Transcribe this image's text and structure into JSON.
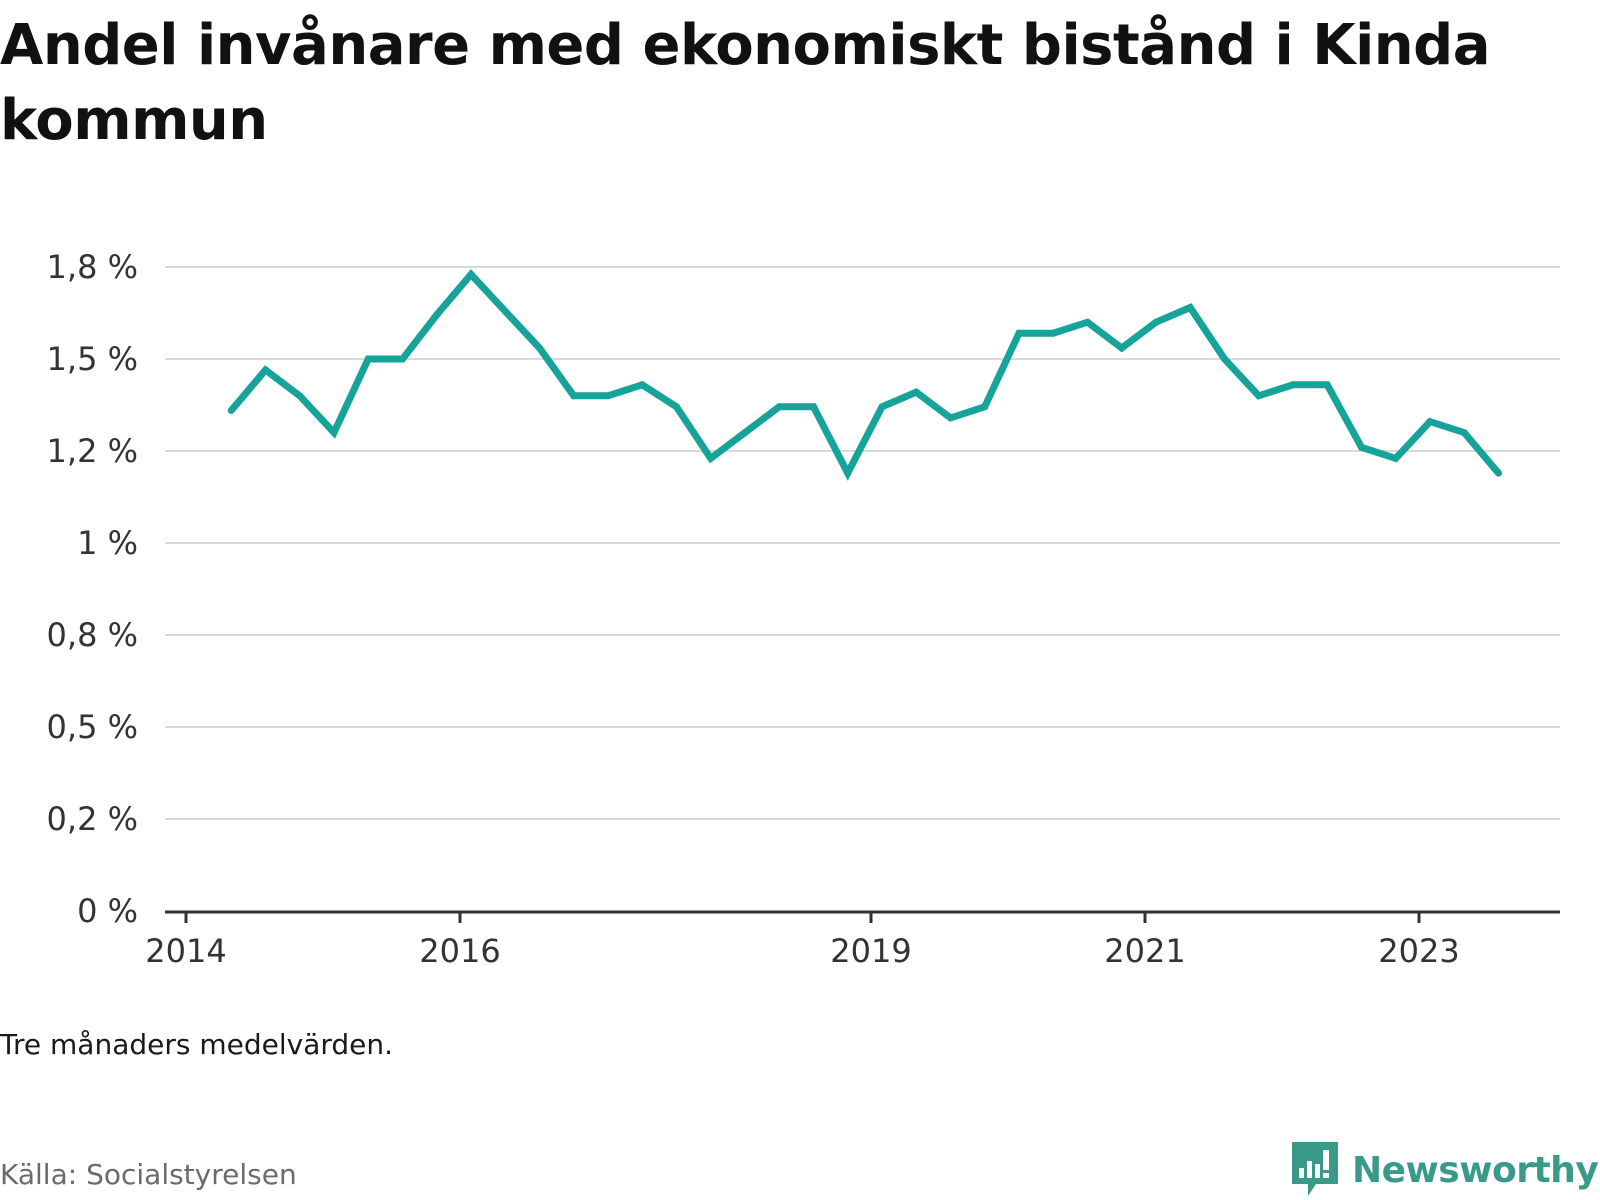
{
  "title": "Andel invånare med ekonomiskt bistånd i Kinda kommun",
  "note": "Tre månaders medelvärden.",
  "source": "Källa: Socialstyrelsen",
  "logo": {
    "text": "Newsworthy",
    "icon": "newsworthy-logo-icon",
    "color": "#3a9a8a"
  },
  "colors": {
    "line": "#16a399",
    "grid": "#d9d9d9",
    "axis": "#333333"
  },
  "chart_data": {
    "type": "line",
    "title": "Andel invånare med ekonomiskt bistånd i Kinda kommun",
    "xlabel": "",
    "ylabel": "",
    "ylim": [
      0,
      1.75
    ],
    "xlim": [
      2014,
      2024.25
    ],
    "grid": true,
    "legend": "none",
    "y_ticks": [
      {
        "value": 0,
        "label": "0 %"
      },
      {
        "value": 0.25,
        "label": "0,2 %"
      },
      {
        "value": 0.5,
        "label": "0,5 %"
      },
      {
        "value": 0.75,
        "label": "0,8 %"
      },
      {
        "value": 1.0,
        "label": "1 %"
      },
      {
        "value": 1.25,
        "label": "1,2 %"
      },
      {
        "value": 1.5,
        "label": "1,5 %"
      },
      {
        "value": 1.75,
        "label": "1,8 %"
      }
    ],
    "x_ticks": [
      {
        "value": 2014,
        "label": "2014"
      },
      {
        "value": 2016,
        "label": "2016"
      },
      {
        "value": 2019,
        "label": "2019"
      },
      {
        "value": 2021,
        "label": "2021"
      },
      {
        "value": 2023,
        "label": "2023"
      }
    ],
    "series": [
      {
        "x": [
          2014.33,
          2014.58,
          2014.83,
          2015.08,
          2015.33,
          2015.58,
          2015.83,
          2016.08,
          2016.33,
          2016.58,
          2016.83,
          2017.08,
          2017.33,
          2017.58,
          2017.83,
          2018.08,
          2018.33,
          2018.58,
          2018.83,
          2019.08,
          2019.33,
          2019.58,
          2019.83,
          2020.08,
          2020.33,
          2020.58,
          2020.83,
          2021.08,
          2021.33,
          2021.58,
          2021.83,
          2022.08,
          2022.33,
          2022.58,
          2022.83,
          2023.08,
          2023.33,
          2023.58
        ],
        "values": [
          1.36,
          1.47,
          1.4,
          1.3,
          1.5,
          1.5,
          1.62,
          1.73,
          1.63,
          1.53,
          1.4,
          1.4,
          1.43,
          1.37,
          1.23,
          1.3,
          1.37,
          1.37,
          1.19,
          1.37,
          1.41,
          1.34,
          1.37,
          1.57,
          1.57,
          1.6,
          1.53,
          1.6,
          1.64,
          1.5,
          1.4,
          1.43,
          1.43,
          1.26,
          1.23,
          1.33,
          1.3,
          1.19
        ]
      }
    ]
  }
}
